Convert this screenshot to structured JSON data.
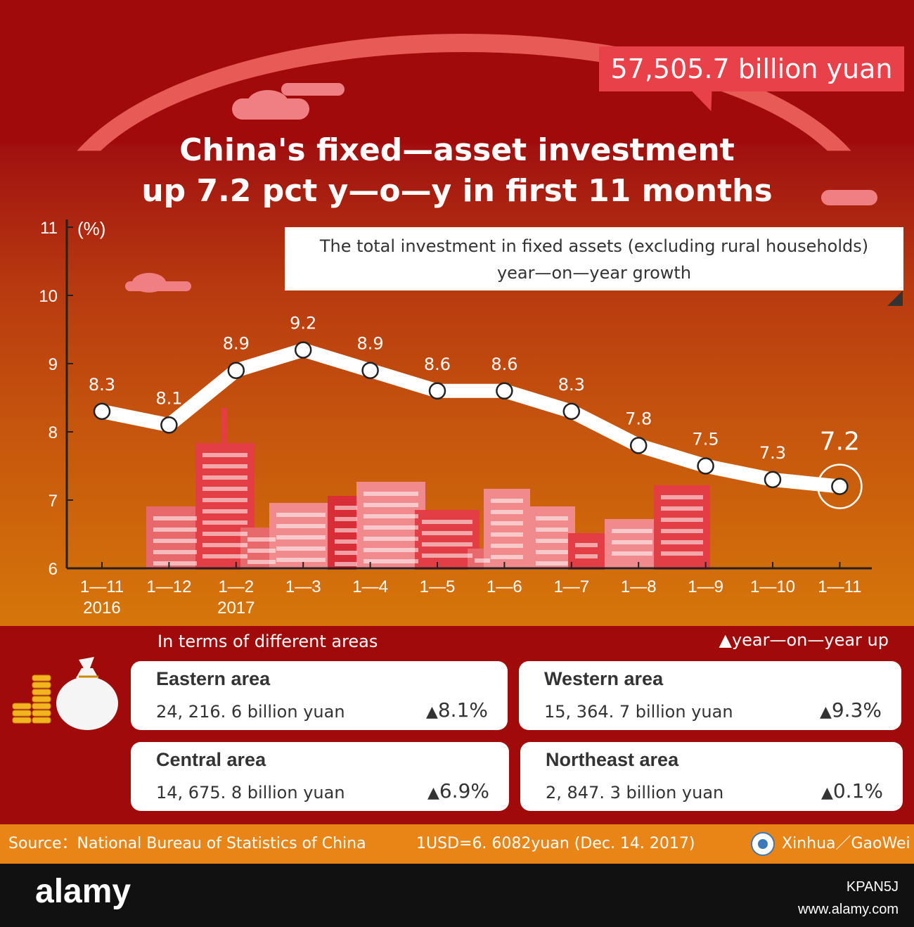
{
  "header": {
    "total_value": "57,505.7 billion yuan",
    "title_line1": "China's fixed—asset investment",
    "title_line2": "up 7.2 pct y—o—y in first 11 months"
  },
  "chart_data": {
    "type": "line",
    "subtitle_line1": "The total investment in fixed assets (excluding rural households)",
    "subtitle_line2": "year—on—year growth",
    "ylabel": "(%)",
    "ylim": [
      6,
      11
    ],
    "yticks": [
      "6",
      "7",
      "8",
      "9",
      "10",
      "11"
    ],
    "categories": [
      "1—11",
      "1—12",
      "1—2",
      "1—3",
      "1—4",
      "1—5",
      "1—6",
      "1—7",
      "1—8",
      "1—9",
      "1—10",
      "1—11"
    ],
    "year_labels": [
      "2016",
      "",
      "2017",
      "",
      "",
      "",
      "",
      "",
      "",
      "",
      "",
      ""
    ],
    "values": [
      8.3,
      8.1,
      8.9,
      9.2,
      8.9,
      8.6,
      8.6,
      8.3,
      7.8,
      7.5,
      7.3,
      7.2
    ],
    "value_labels": [
      "8.3",
      "8.1",
      "8.9",
      "9.2",
      "8.9",
      "8.6",
      "8.6",
      "8.3",
      "7.8",
      "7.5",
      "7.3",
      "7.2"
    ],
    "highlight_last": true,
    "grid": false
  },
  "areas": {
    "title": "In terms of different areas",
    "legend": "▲year—on—year up",
    "items": [
      {
        "name": "Eastern area",
        "value": "24, 216. 6 billion  yuan",
        "growth": "8.1%"
      },
      {
        "name": "Western area",
        "value": "15, 364. 7 billion  yuan",
        "growth": "9.3%"
      },
      {
        "name": "Central area",
        "value": "14, 675. 8 billion  yuan",
        "growth": "6.9%"
      },
      {
        "name": "Northeast area",
        "value": "2, 847. 3  billion  yuan",
        "growth": "0.1%"
      }
    ],
    "triangle": "▲"
  },
  "footer": {
    "source": "Source：National Bureau of Statistics of China",
    "rate": "1USD=6. 6082yuan (Dec. 14. 2017)",
    "credit": "Xinhua／GaoWei"
  },
  "watermark": {
    "logo": "alamy",
    "image_id": "KPAN5J",
    "site": "www.alamy.com"
  },
  "colors": {
    "top_bg": "#a00a0a",
    "accent": "#e8414a",
    "footer": "#e88516"
  }
}
